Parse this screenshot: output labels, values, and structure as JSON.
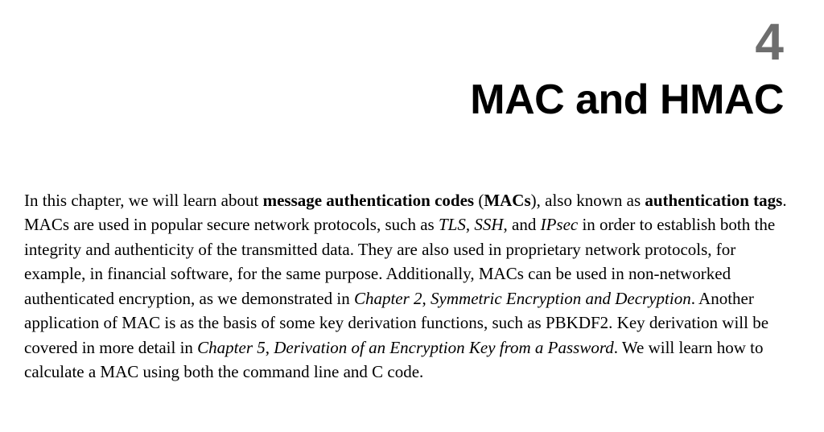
{
  "chapter": {
    "number": "4",
    "title": "MAC and HMAC"
  },
  "paragraph": {
    "seg01": "In this chapter, we will learn about ",
    "seg02_bold": "message authentication codes",
    "seg03": " (",
    "seg04_bold": "MACs",
    "seg05": "), also known as ",
    "seg06_bold": "authentication tags",
    "seg07": ". MACs are used in popular secure network protocols, such as ",
    "seg08_italic": "TLS",
    "seg09": ", ",
    "seg10_italic": "SSH",
    "seg11": ", and ",
    "seg12_italic": "IPsec",
    "seg13": " in order to establish both the integrity and authenticity of the transmitted data. They are also used in proprietary network protocols, for example, in financial software, for the same purpose. Additionally, MACs can be used in non-networked authenticated encryption, as we demonstrated in ",
    "seg14_italic": "Chapter 2",
    "seg15": ", ",
    "seg16_italic": "Symmetric Encryption and Decryption",
    "seg17": ". Another application of MAC is as the basis of some key derivation functions, such as PBKDF2. Key derivation will be covered in more detail in ",
    "seg18_italic": "Chapter 5",
    "seg19": ", ",
    "seg20_italic": "Derivation of an Encryption Key from a Password",
    "seg21": ". We will learn how to calculate a MAC using both the command line and C code."
  },
  "colors": {
    "background": "#ffffff",
    "chapter_number": "#6e6e6e",
    "title": "#000000",
    "body": "#000000"
  },
  "typography": {
    "chapter_number_fontsize": 64,
    "title_fontsize": 52,
    "body_fontsize": 21,
    "body_lineheight": 1.45
  }
}
